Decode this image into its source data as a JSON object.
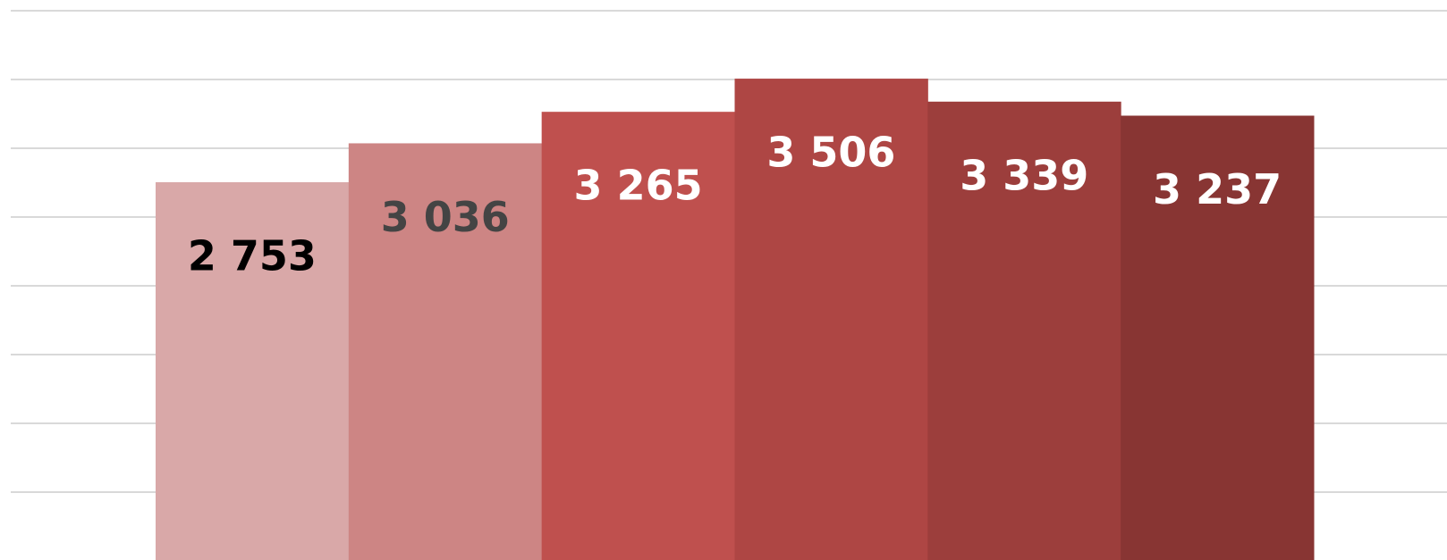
{
  "chart_data": {
    "type": "bar",
    "categories": [
      null,
      null,
      null,
      null,
      null,
      null
    ],
    "values": [
      2753,
      3036,
      3265,
      3506,
      3339,
      3237
    ],
    "value_labels": [
      "2 753",
      "3 036",
      "3 265",
      "3 506",
      "3 339",
      "3 237"
    ],
    "colors": [
      "#d9a8a8",
      "#cd8584",
      "#bf504e",
      "#ae4644",
      "#9c3e3c",
      "#883533"
    ],
    "label_colors": [
      "#000000",
      "#444444",
      "#ffffff",
      "#ffffff",
      "#ffffff",
      "#ffffff"
    ],
    "ylim": [
      0,
      4000
    ],
    "yticks": [
      500,
      1000,
      1500,
      2000,
      2500,
      3000,
      3500,
      4000
    ],
    "grid": true
  }
}
